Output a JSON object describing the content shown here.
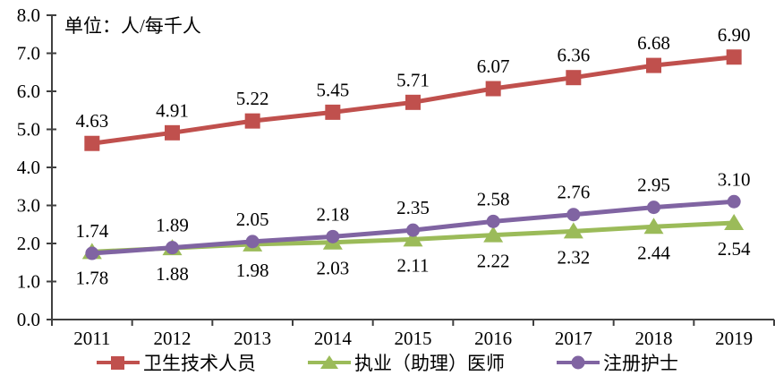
{
  "chart_data": {
    "type": "line",
    "unit_label": "单位：人/每千人",
    "categories": [
      "2011",
      "2012",
      "2013",
      "2014",
      "2015",
      "2016",
      "2017",
      "2018",
      "2019"
    ],
    "ylim": [
      0.0,
      8.0
    ],
    "ytick_labels": [
      "0.0",
      "1.0",
      "2.0",
      "3.0",
      "4.0",
      "5.0",
      "6.0",
      "7.0",
      "8.0"
    ],
    "grid": false,
    "legend_position": "bottom",
    "axis_color": "#404040",
    "series": [
      {
        "name": "卫生技术人员",
        "color": "#C0504D",
        "marker": "square",
        "label_position": "above",
        "zorder": 3,
        "values": [
          4.63,
          4.91,
          5.22,
          5.45,
          5.71,
          6.07,
          6.36,
          6.68,
          6.9
        ]
      },
      {
        "name": "执业（助理）医师",
        "color": "#9BBB59",
        "marker": "triangle",
        "label_position": "below",
        "zorder": 1,
        "values": [
          1.78,
          1.88,
          1.98,
          2.03,
          2.11,
          2.22,
          2.32,
          2.44,
          2.54
        ]
      },
      {
        "name": "注册护士",
        "color": "#8064A2",
        "marker": "circle",
        "label_position": "above",
        "zorder": 2,
        "values": [
          1.74,
          1.89,
          2.05,
          2.18,
          2.35,
          2.58,
          2.76,
          2.95,
          3.1
        ]
      }
    ]
  }
}
